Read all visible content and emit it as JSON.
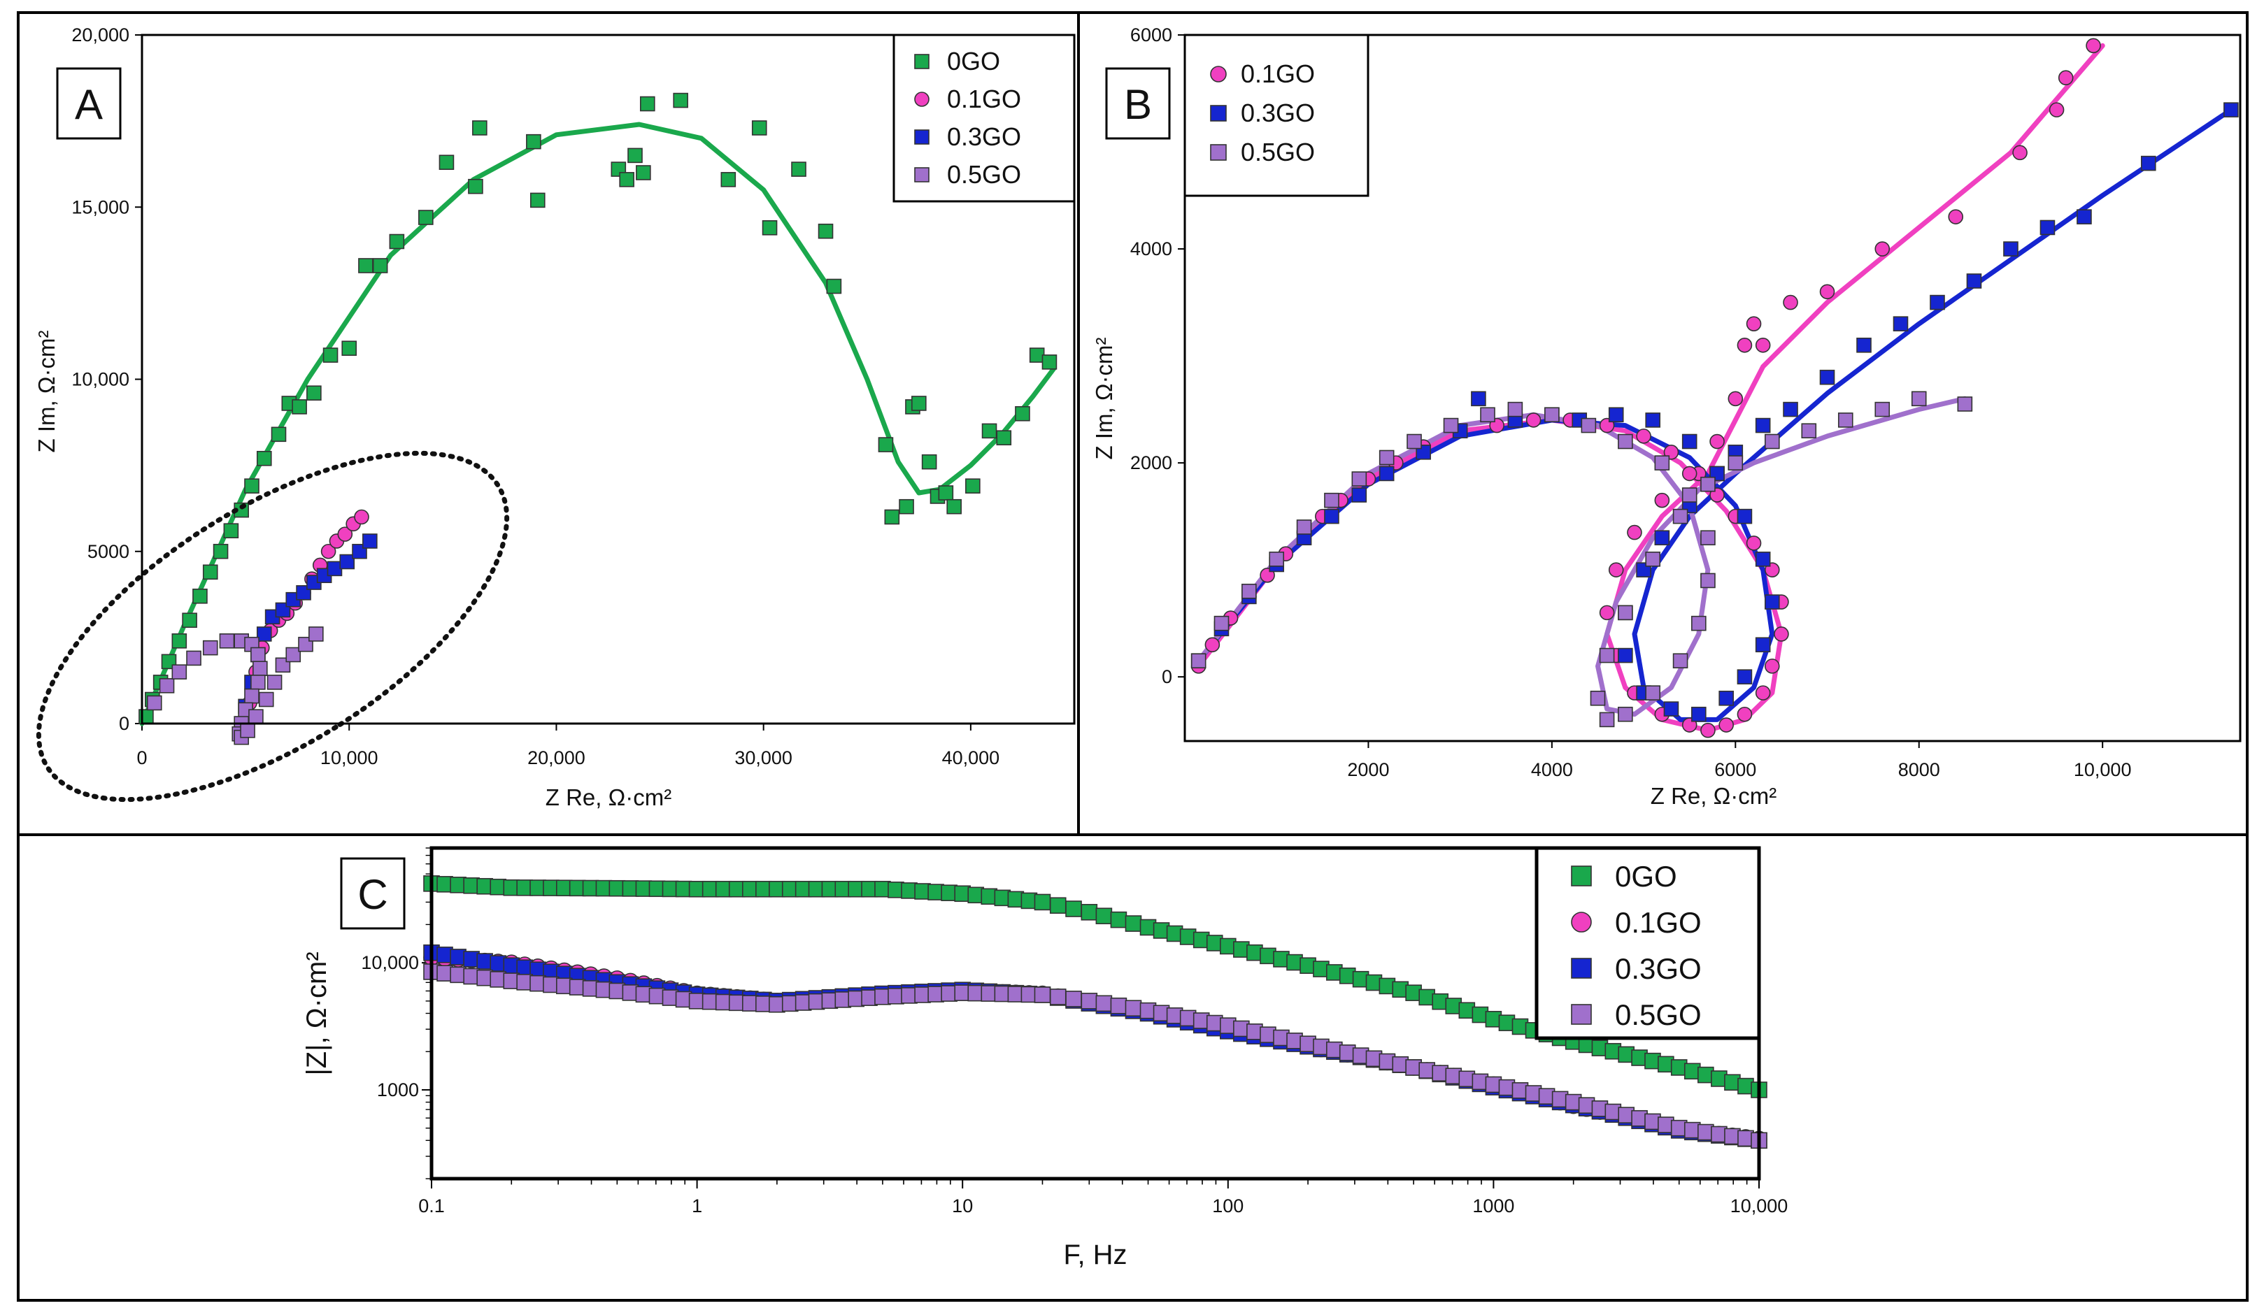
{
  "colors": {
    "0GO": "#1aa84c",
    "0.1GO": "#f040c0",
    "0.3GO": "#1525d0",
    "0.5GO": "#a070cc"
  },
  "panels": {
    "A": {
      "label": "A",
      "xlabel": "Z Re, Ω·cm²",
      "ylabel": "Z Im, Ω·cm²",
      "xticks": [
        "0",
        "10,000",
        "20,000",
        "30,000",
        "40,000"
      ],
      "yticks": [
        "0",
        "5000",
        "10,000",
        "15,000",
        "20,000"
      ],
      "legend": [
        "0GO",
        "0.1GO",
        "0.3GO",
        "0.5GO"
      ]
    },
    "B": {
      "label": "B",
      "xlabel": "Z Re, Ω·cm²",
      "ylabel": "Z Im, Ω·cm²",
      "xticks": [
        "2000",
        "4000",
        "6000",
        "8000",
        "10,000"
      ],
      "yticks": [
        "0",
        "2000",
        "4000",
        "6000"
      ],
      "legend": [
        "0.1GO",
        "0.3GO",
        "0.5GO"
      ]
    },
    "C": {
      "label": "C",
      "xlabel": "F, Hz",
      "ylabel": "|Z|, Ω·cm²",
      "xticks": [
        "0.1",
        "1",
        "10",
        "100",
        "1000",
        "10,000"
      ],
      "yticks": [
        "1000",
        "10,000"
      ],
      "legend": [
        "0GO",
        "0.1GO",
        "0.3GO",
        "0.5GO"
      ]
    }
  },
  "chart_data": [
    {
      "panel": "A",
      "type": "scatter",
      "xlabel": "Z Re, Ω·cm²",
      "ylabel": "Z Im, Ω·cm²",
      "xlim": [
        0,
        45000
      ],
      "ylim": [
        0,
        20000
      ],
      "series": [
        {
          "name": "0GO",
          "marker": "square",
          "fit_line": true,
          "x": [
            200,
            500,
            900,
            1300,
            1800,
            2300,
            2800,
            3300,
            3800,
            4300,
            4800,
            5300,
            5900,
            6600,
            7100,
            7600,
            8300,
            9100,
            10000,
            10800,
            11500,
            12300,
            13700,
            14700,
            16100,
            16300,
            18900,
            19100,
            23000,
            23400,
            23800,
            24200,
            24400,
            26000,
            28300,
            29800,
            30300,
            31700,
            33000,
            33400,
            35900,
            36200,
            36900,
            37200,
            37500,
            38000,
            38400,
            38800,
            39200,
            40100,
            40900,
            41600,
            42500,
            43200,
            43800
          ],
          "y": [
            200,
            700,
            1200,
            1800,
            2400,
            3000,
            3700,
            4400,
            5000,
            5600,
            6200,
            6900,
            7700,
            8400,
            9300,
            9200,
            9600,
            10700,
            10900,
            13300,
            13300,
            14000,
            14700,
            16300,
            15600,
            17300,
            16900,
            15200,
            16100,
            15800,
            16500,
            16000,
            18000,
            18100,
            15800,
            17300,
            14400,
            16100,
            14300,
            12700,
            8100,
            6000,
            6300,
            9200,
            9300,
            7600,
            6600,
            6700,
            6300,
            6900,
            8500,
            8300,
            9000,
            10700,
            10500
          ],
          "fit_x": [
            0,
            2000,
            5000,
            8000,
            12000,
            16000,
            20000,
            24000,
            27000,
            30000,
            33000,
            35000,
            36500,
            37500,
            38500,
            40000,
            41500,
            43000,
            44000
          ],
          "fit_y": [
            0,
            2800,
            6800,
            10000,
            13600,
            15800,
            17100,
            17400,
            17000,
            15500,
            12800,
            10000,
            7600,
            6700,
            6800,
            7500,
            8400,
            9500,
            10300
          ]
        },
        {
          "name": "0.1GO",
          "marker": "circle",
          "x": [
            5200,
            5500,
            5800,
            6200,
            6600,
            7000,
            7400,
            7800,
            8200,
            8600,
            9000,
            9400,
            9800,
            10200,
            10600
          ],
          "y": [
            600,
            1500,
            2200,
            2700,
            3000,
            3200,
            3500,
            3800,
            4200,
            4600,
            5000,
            5300,
            5500,
            5800,
            6000
          ]
        },
        {
          "name": "0.3GO",
          "marker": "square",
          "x": [
            5000,
            5300,
            5600,
            5900,
            6300,
            6800,
            7300,
            7800,
            8300,
            8800,
            9300,
            9900,
            10500,
            11000
          ],
          "y": [
            500,
            1200,
            2000,
            2600,
            3100,
            3300,
            3600,
            3800,
            4100,
            4300,
            4500,
            4700,
            5000,
            5300
          ]
        },
        {
          "name": "0.5GO",
          "marker": "square",
          "x": [
            600,
            1200,
            1800,
            2500,
            3300,
            4100,
            4800,
            5300,
            5600,
            5700,
            5600,
            5300,
            5000,
            4800,
            4700,
            4800,
            5100,
            5500,
            6000,
            6400,
            6800,
            7300,
            7900,
            8400
          ],
          "y": [
            600,
            1100,
            1500,
            1900,
            2200,
            2400,
            2400,
            2300,
            2000,
            1600,
            1200,
            800,
            400,
            0,
            -300,
            -400,
            -200,
            200,
            700,
            1200,
            1700,
            2000,
            2300,
            2600
          ]
        }
      ]
    },
    {
      "panel": "B",
      "type": "scatter",
      "xlabel": "Z Re, Ω·cm²",
      "ylabel": "Z Im, Ω·cm²",
      "xlim": [
        0,
        11500
      ],
      "ylim": [
        -600,
        6000
      ],
      "series": [
        {
          "name": "0.1GO",
          "marker": "circle",
          "fit_line": true,
          "x": [
            150,
            300,
            500,
            700,
            900,
            1100,
            1300,
            1500,
            1700,
            2000,
            2300,
            2600,
            3000,
            3400,
            3800,
            4200,
            4600,
            5000,
            5300,
            5600,
            5800,
            6000,
            6200,
            6400,
            6500,
            6500,
            6400,
            6300,
            6100,
            5900,
            5700,
            5500,
            5200,
            4900,
            4700,
            4600,
            4700,
            4900,
            5200,
            5500,
            5800,
            6000,
            6100,
            6200,
            6300,
            6600,
            7000,
            7600,
            8400,
            9100,
            9500,
            9600,
            9900
          ],
          "y": [
            100,
            300,
            550,
            750,
            950,
            1150,
            1350,
            1500,
            1650,
            1850,
            2000,
            2150,
            2300,
            2350,
            2400,
            2400,
            2350,
            2250,
            2100,
            1900,
            1700,
            1500,
            1250,
            1000,
            700,
            400,
            100,
            -150,
            -350,
            -450,
            -500,
            -450,
            -350,
            -150,
            200,
            600,
            1000,
            1350,
            1650,
            1900,
            2200,
            2600,
            3100,
            3300,
            3100,
            3500,
            3600,
            4000,
            4300,
            4900,
            5300,
            5600,
            5900
          ],
          "fit_x": [
            150,
            1000,
            2000,
            3000,
            4000,
            4800,
            5400,
            5900,
            6300,
            6500,
            6400,
            6100,
            5700,
            5200,
            4800,
            4600,
            4800,
            5200,
            5700,
            6000,
            6300,
            7000,
            8000,
            9000,
            10000
          ],
          "fit_y": [
            100,
            1050,
            1850,
            2300,
            2400,
            2300,
            2000,
            1550,
            1000,
            400,
            -150,
            -400,
            -500,
            -400,
            -100,
            400,
            1000,
            1500,
            1900,
            2400,
            2900,
            3500,
            4200,
            4900,
            5900
          ]
        },
        {
          "name": "0.3GO",
          "marker": "square",
          "fit_line": true,
          "x": [
            150,
            400,
            700,
            1000,
            1300,
            1600,
            1900,
            2200,
            2600,
            3000,
            3200,
            3600,
            4000,
            4300,
            4700,
            5100,
            5500,
            5800,
            6100,
            6300,
            6400,
            6300,
            6100,
            5900,
            5600,
            5300,
            5000,
            4800,
            4800,
            5000,
            5200,
            5500,
            5800,
            6000,
            6300,
            6600,
            7000,
            7400,
            7800,
            8200,
            8600,
            9000,
            9400,
            9800,
            10500,
            11400
          ],
          "y": [
            150,
            450,
            750,
            1050,
            1300,
            1500,
            1700,
            1900,
            2100,
            2300,
            2600,
            2400,
            2450,
            2400,
            2450,
            2400,
            2200,
            1900,
            1500,
            1100,
            700,
            300,
            0,
            -200,
            -350,
            -300,
            -150,
            200,
            600,
            1000,
            1300,
            1600,
            1900,
            2100,
            2350,
            2500,
            2800,
            3100,
            3300,
            3500,
            3700,
            4000,
            4200,
            4300,
            4800,
            5300
          ],
          "fit_x": [
            150,
            1000,
            2000,
            3000,
            4000,
            4800,
            5500,
            6000,
            6300,
            6400,
            6200,
            5800,
            5400,
            5000,
            4900,
            5100,
            5500,
            6000,
            7000,
            8000,
            9000,
            10000,
            11400
          ],
          "fit_y": [
            150,
            1050,
            1800,
            2250,
            2400,
            2350,
            2050,
            1600,
            1000,
            400,
            -100,
            -400,
            -400,
            -100,
            400,
            1000,
            1500,
            1900,
            2650,
            3300,
            3900,
            4500,
            5300
          ]
        },
        {
          "name": "0.5GO",
          "marker": "square",
          "fit_line": true,
          "x": [
            150,
            400,
            700,
            1000,
            1300,
            1600,
            1900,
            2200,
            2500,
            2900,
            3300,
            3600,
            4000,
            4400,
            4800,
            5200,
            5500,
            5700,
            5700,
            5600,
            5400,
            5100,
            4800,
            4600,
            4500,
            4600,
            4800,
            5100,
            5400,
            5700,
            6000,
            6400,
            6800,
            7200,
            7600,
            8000,
            8500
          ],
          "y": [
            150,
            500,
            800,
            1100,
            1400,
            1650,
            1850,
            2050,
            2200,
            2350,
            2450,
            2500,
            2450,
            2350,
            2200,
            2000,
            1700,
            1300,
            900,
            500,
            150,
            -150,
            -350,
            -400,
            -200,
            200,
            600,
            1100,
            1500,
            1800,
            2000,
            2200,
            2300,
            2400,
            2500,
            2600,
            2550
          ],
          "fit_x": [
            150,
            1000,
            2000,
            3000,
            3800,
            4500,
            5100,
            5500,
            5700,
            5600,
            5300,
            4900,
            4600,
            4500,
            4700,
            5100,
            5600,
            6200,
            7000,
            8000,
            8500
          ],
          "fit_y": [
            150,
            1100,
            1900,
            2350,
            2450,
            2350,
            2050,
            1600,
            1000,
            400,
            -100,
            -350,
            -300,
            100,
            700,
            1300,
            1750,
            2000,
            2250,
            2500,
            2600
          ]
        }
      ]
    },
    {
      "panel": "C",
      "type": "scatter",
      "xlabel": "F, Hz",
      "ylabel": "|Z|, Ω·cm²",
      "xscale": "log",
      "yscale": "log",
      "xlim": [
        0.1,
        10000
      ],
      "ylim": [
        200,
        80000
      ],
      "series": [
        {
          "name": "0GO",
          "marker": "square",
          "x": [
            0.1,
            0.2,
            0.5,
            1,
            2,
            5,
            10,
            20,
            30,
            50,
            100,
            200,
            500,
            1000,
            2000,
            5000,
            10000
          ],
          "y": [
            42000,
            39000,
            38500,
            38000,
            38000,
            38000,
            35000,
            30000,
            25000,
            19000,
            13500,
            9500,
            5800,
            3600,
            2400,
            1500,
            1000
          ]
        },
        {
          "name": "0.1GO",
          "marker": "circle",
          "x": [
            0.1,
            0.2,
            0.5,
            1,
            2,
            5,
            10,
            20,
            30,
            50,
            100,
            200,
            500,
            1000,
            2000,
            5000,
            10000
          ],
          "y": [
            11000,
            10000,
            7500,
            5700,
            5000,
            5500,
            6000,
            5700,
            4900,
            4100,
            3000,
            2200,
            1500,
            1100,
            750,
            490,
            410
          ]
        },
        {
          "name": "0.3GO",
          "marker": "square",
          "x": [
            0.1,
            0.2,
            0.5,
            1,
            2,
            5,
            10,
            20,
            30,
            50,
            100,
            200,
            500,
            1000,
            2000,
            5000,
            10000
          ],
          "y": [
            12000,
            9500,
            7000,
            5600,
            5000,
            5700,
            6100,
            5600,
            4800,
            4000,
            2900,
            2200,
            1500,
            1050,
            760,
            480,
            400
          ]
        },
        {
          "name": "0.5GO",
          "marker": "square",
          "x": [
            0.1,
            0.2,
            0.5,
            1,
            2,
            5,
            10,
            20,
            30,
            50,
            100,
            200,
            500,
            1000,
            2000,
            5000,
            10000
          ],
          "y": [
            8500,
            7200,
            6000,
            5000,
            4700,
            5400,
            5800,
            5600,
            5000,
            4200,
            3200,
            2300,
            1500,
            1100,
            800,
            500,
            400
          ]
        }
      ]
    }
  ]
}
